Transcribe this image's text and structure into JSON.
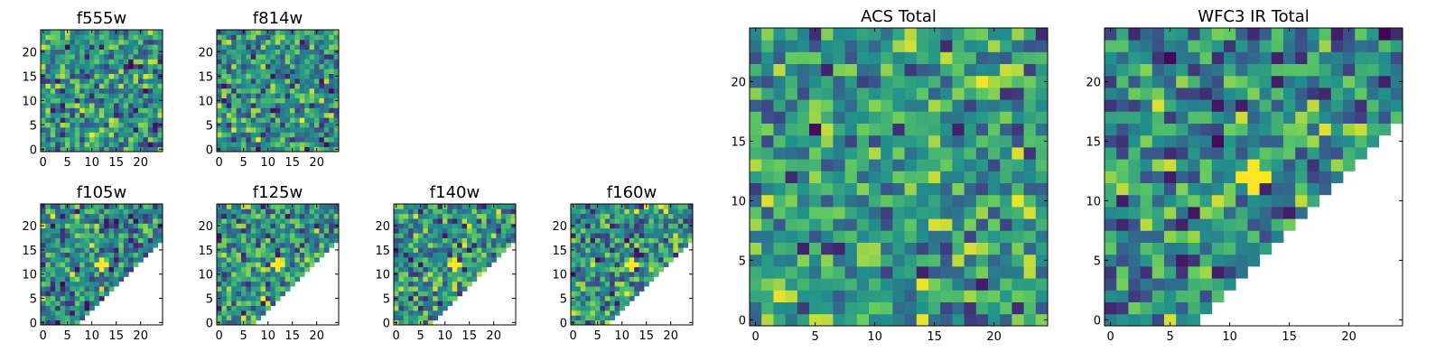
{
  "chart_data": [
    {
      "type": "heatmap",
      "title": "f555w",
      "xlim": [
        -0.5,
        24.5
      ],
      "ylim": [
        -0.5,
        24.5
      ],
      "xticks": [
        0,
        5,
        10,
        15,
        20
      ],
      "yticks": [
        0,
        5,
        10,
        15,
        20
      ],
      "grid_size": [
        25,
        25
      ],
      "coverage": "full",
      "colormap": [
        "#440154",
        "#3b528b",
        "#21918c",
        "#5ec962",
        "#fde725"
      ],
      "value_range": [
        0,
        1
      ],
      "bright_spot": null,
      "color_balance": 0.55
    },
    {
      "type": "heatmap",
      "title": "f814w",
      "xlim": [
        -0.5,
        24.5
      ],
      "ylim": [
        -0.5,
        24.5
      ],
      "xticks": [
        0,
        5,
        10,
        15,
        20
      ],
      "yticks": [
        0,
        5,
        10,
        15,
        20
      ],
      "grid_size": [
        25,
        25
      ],
      "coverage": "full",
      "colormap": [
        "#440154",
        "#3b528b",
        "#21918c",
        "#5ec962",
        "#fde725"
      ],
      "value_range": [
        0,
        1
      ],
      "bright_spot": null,
      "color_balance": 0.52
    },
    {
      "type": "heatmap",
      "title": "f105w",
      "xlim": [
        -0.5,
        24.5
      ],
      "ylim": [
        -0.5,
        24.5
      ],
      "xticks": [
        0,
        5,
        10,
        15,
        20
      ],
      "yticks": [
        0,
        5,
        10,
        15,
        20
      ],
      "grid_size": [
        25,
        25
      ],
      "coverage": "upper-left-triangle",
      "colormap": [
        "#440154",
        "#3b528b",
        "#21918c",
        "#5ec962",
        "#fde725"
      ],
      "value_range": [
        0,
        1
      ],
      "bright_spot": [
        12,
        12
      ],
      "color_balance": 0.42
    },
    {
      "type": "heatmap",
      "title": "f125w",
      "xlim": [
        -0.5,
        24.5
      ],
      "ylim": [
        -0.5,
        24.5
      ],
      "xticks": [
        0,
        5,
        10,
        15,
        20
      ],
      "yticks": [
        0,
        5,
        10,
        15,
        20
      ],
      "grid_size": [
        25,
        25
      ],
      "coverage": "upper-left-triangle",
      "colormap": [
        "#440154",
        "#3b528b",
        "#21918c",
        "#5ec962",
        "#fde725"
      ],
      "value_range": [
        0,
        1
      ],
      "bright_spot": [
        12,
        12
      ],
      "color_balance": 0.55
    },
    {
      "type": "heatmap",
      "title": "f140w",
      "xlim": [
        -0.5,
        24.5
      ],
      "ylim": [
        -0.5,
        24.5
      ],
      "xticks": [
        0,
        5,
        10,
        15,
        20
      ],
      "yticks": [
        0,
        5,
        10,
        15,
        20
      ],
      "grid_size": [
        25,
        25
      ],
      "coverage": "upper-left-triangle",
      "colormap": [
        "#440154",
        "#3b528b",
        "#21918c",
        "#5ec962",
        "#fde725"
      ],
      "value_range": [
        0,
        1
      ],
      "bright_spot": [
        12,
        12
      ],
      "color_balance": 0.55
    },
    {
      "type": "heatmap",
      "title": "f160w",
      "xlim": [
        -0.5,
        24.5
      ],
      "ylim": [
        -0.5,
        24.5
      ],
      "xticks": [
        0,
        5,
        10,
        15,
        20
      ],
      "yticks": [
        0,
        5,
        10,
        15,
        20
      ],
      "grid_size": [
        25,
        25
      ],
      "coverage": "upper-left-triangle",
      "colormap": [
        "#440154",
        "#3b528b",
        "#21918c",
        "#5ec962",
        "#fde725"
      ],
      "value_range": [
        0,
        1
      ],
      "bright_spot": [
        12,
        12
      ],
      "color_balance": 0.5
    },
    {
      "type": "heatmap",
      "title": "ACS Total",
      "xlim": [
        -0.5,
        24.5
      ],
      "ylim": [
        -0.5,
        24.5
      ],
      "xticks": [
        0,
        5,
        10,
        15,
        20
      ],
      "yticks": [
        0,
        5,
        10,
        15,
        20
      ],
      "grid_size": [
        25,
        25
      ],
      "coverage": "full",
      "colormap": [
        "#440154",
        "#3b528b",
        "#21918c",
        "#5ec962",
        "#fde725"
      ],
      "value_range": [
        0,
        1
      ],
      "bright_spot": null,
      "color_balance": 0.62
    },
    {
      "type": "heatmap",
      "title": "WFC3 IR Total",
      "xlim": [
        -0.5,
        24.5
      ],
      "ylim": [
        -0.5,
        24.5
      ],
      "xticks": [
        0,
        5,
        10,
        15,
        20
      ],
      "yticks": [
        0,
        5,
        10,
        15,
        20
      ],
      "grid_size": [
        25,
        25
      ],
      "coverage": "upper-left-triangle",
      "colormap": [
        "#440154",
        "#3b528b",
        "#21918c",
        "#5ec962",
        "#fde725"
      ],
      "value_range": [
        0,
        1
      ],
      "bright_spot": [
        12,
        12
      ],
      "color_balance": 0.42
    }
  ]
}
